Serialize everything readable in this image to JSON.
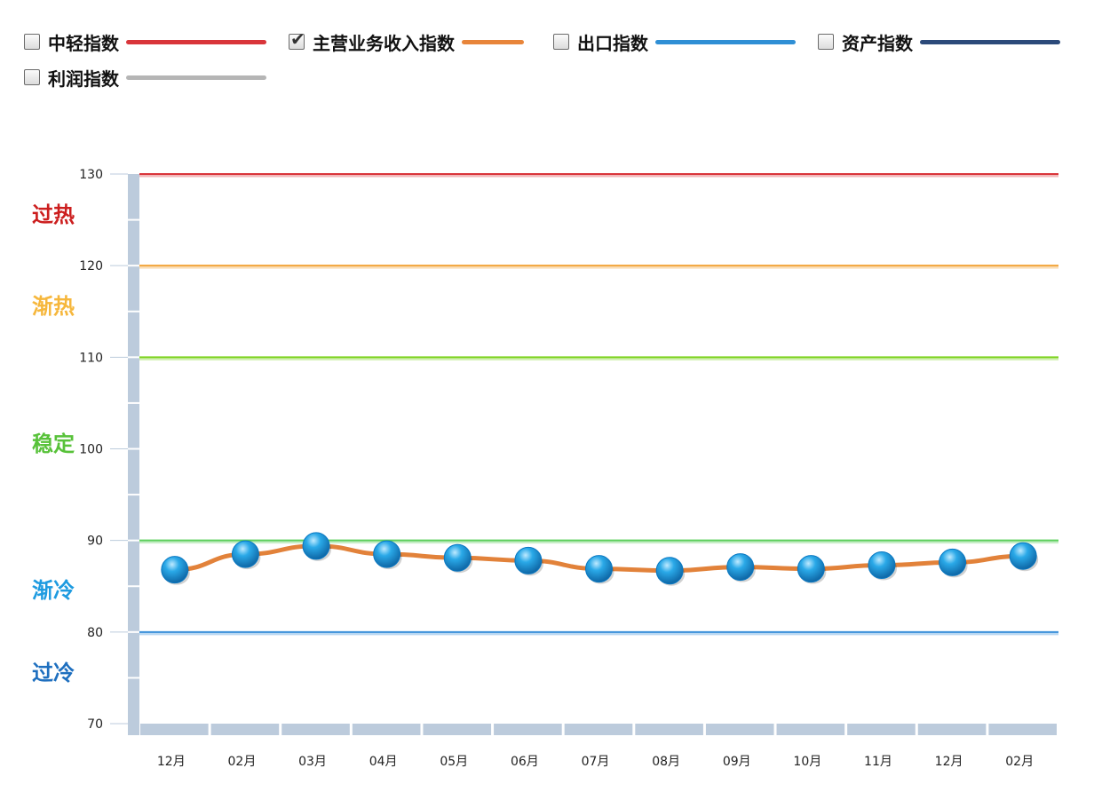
{
  "legend": {
    "items": [
      {
        "label": "中轻指数",
        "checked": false,
        "color": "#d9353a"
      },
      {
        "label": "主营业务收入指数",
        "checked": true,
        "color": "#e8853a"
      },
      {
        "label": "出口指数",
        "checked": false,
        "color": "#2f8fd5"
      },
      {
        "label": "资产指数",
        "checked": false,
        "color": "#2c4a7a"
      },
      {
        "label": "利润指数",
        "checked": false,
        "color": "#b5b5b5"
      }
    ]
  },
  "zones": [
    {
      "label": "过热",
      "color": "#cc1e1e",
      "value": 126
    },
    {
      "label": "渐热",
      "color": "#f6b73c",
      "value": 116
    },
    {
      "label": "稳定",
      "color": "#58c23a",
      "value": 101
    },
    {
      "label": "渐冷",
      "color": "#1e9be0",
      "value": 85
    },
    {
      "label": "过冷",
      "color": "#1e6fbf",
      "value": 76
    }
  ],
  "chart_data": {
    "type": "line",
    "x": [
      "12月",
      "02月",
      "03月",
      "04月",
      "05月",
      "06月",
      "07月",
      "08月",
      "09月",
      "10月",
      "11月",
      "12月",
      "02月"
    ],
    "series": [
      {
        "values": [
          86.8,
          88.5,
          89.4,
          88.5,
          88.1,
          87.8,
          86.9,
          86.7,
          87.1,
          86.9,
          87.3,
          87.6,
          88.3
        ],
        "color": "#e2823a"
      }
    ],
    "yticks": [
      70,
      80,
      90,
      100,
      110,
      120,
      130
    ],
    "ylim": [
      70,
      130
    ],
    "reference_lines": [
      {
        "value": 130,
        "color": "#d9353a"
      },
      {
        "value": 120,
        "color": "#f2a43a"
      },
      {
        "value": 110,
        "color": "#7ed321"
      },
      {
        "value": 90,
        "color": "#5ccf5c"
      },
      {
        "value": 80,
        "color": "#3a8fd9"
      }
    ]
  }
}
